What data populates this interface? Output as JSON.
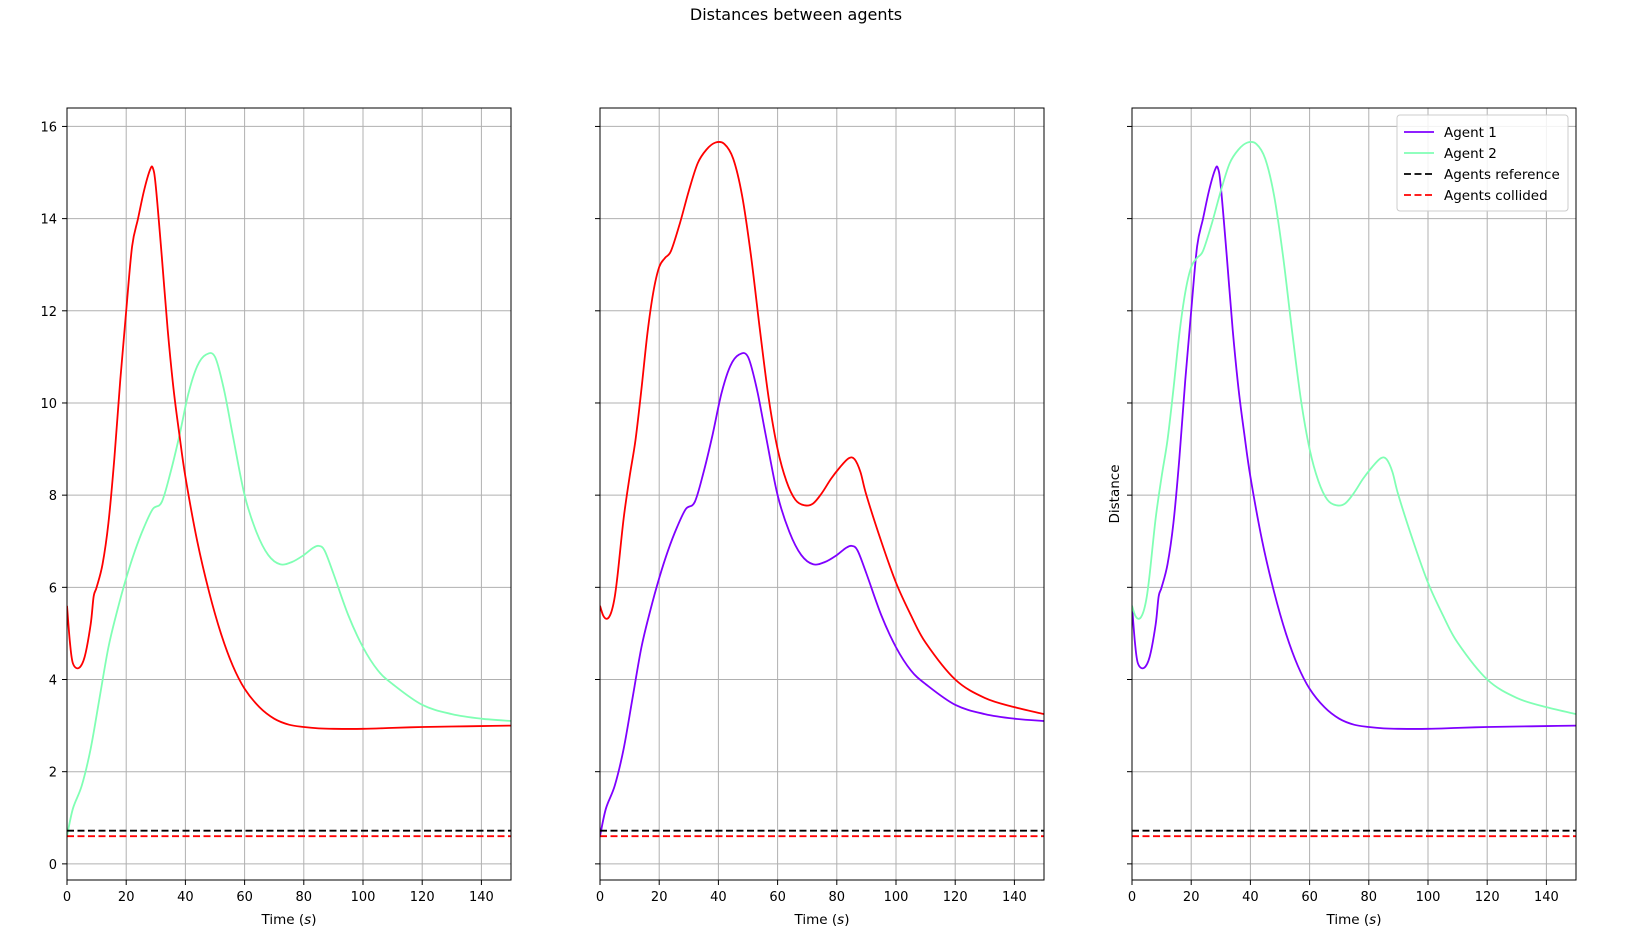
{
  "figure_title": "Distances between agents",
  "colors": {
    "agent_1": "#7f00ff",
    "agent_2": "#80ffb4",
    "red_series": "#ff0000",
    "reference": "#000000",
    "collided": "#ff0000",
    "grid": "#b0b0b0"
  },
  "chart_data": [
    {
      "type": "line",
      "xlabel": "Time (s)",
      "ylabel": "",
      "xlim": [
        0,
        150
      ],
      "ylim": [
        -0.35,
        16.4
      ],
      "xticks": [
        0,
        20,
        40,
        60,
        80,
        100,
        120,
        140
      ],
      "yticks": [
        0,
        2,
        4,
        6,
        8,
        10,
        12,
        14,
        16
      ],
      "grid": true,
      "legend": null,
      "series": [
        {
          "color": "#80ffb4",
          "style": "solid",
          "x": [
            0,
            2,
            5,
            8,
            11,
            14,
            17,
            20,
            23,
            26,
            29,
            32,
            35,
            38,
            41,
            44,
            47,
            50,
            53,
            56,
            60,
            64,
            68,
            72,
            76,
            80,
            83,
            85,
            87,
            90,
            95,
            100,
            105,
            110,
            120,
            130,
            140,
            150
          ],
          "y": [
            0.6,
            1.2,
            1.7,
            2.5,
            3.6,
            4.7,
            5.5,
            6.2,
            6.8,
            7.3,
            7.7,
            7.85,
            8.5,
            9.3,
            10.2,
            10.8,
            11.05,
            11.0,
            10.3,
            9.3,
            8.0,
            7.2,
            6.7,
            6.5,
            6.55,
            6.7,
            6.85,
            6.9,
            6.8,
            6.3,
            5.4,
            4.7,
            4.2,
            3.9,
            3.45,
            3.25,
            3.15,
            3.1
          ]
        },
        {
          "color": "#ff0000",
          "style": "solid",
          "x": [
            0,
            1,
            2,
            4,
            6,
            8,
            9,
            10,
            12,
            14,
            16,
            18,
            20,
            22,
            24,
            26,
            28,
            29,
            30,
            32,
            34,
            36,
            38,
            40,
            44,
            48,
            52,
            56,
            60,
            65,
            70,
            75,
            80,
            85,
            90,
            100,
            110,
            120,
            130,
            140,
            150
          ],
          "y": [
            5.6,
            4.8,
            4.35,
            4.25,
            4.5,
            5.2,
            5.8,
            6.0,
            6.5,
            7.4,
            8.8,
            10.5,
            12.0,
            13.4,
            14.0,
            14.6,
            15.05,
            15.1,
            14.7,
            13.2,
            11.6,
            10.3,
            9.3,
            8.4,
            7.0,
            5.9,
            5.0,
            4.3,
            3.8,
            3.4,
            3.15,
            3.02,
            2.97,
            2.94,
            2.93,
            2.93,
            2.95,
            2.97,
            2.98,
            2.99,
            3.0
          ]
        },
        {
          "color": "#000000",
          "style": "dashed",
          "x": [
            0,
            150
          ],
          "y": [
            0.72,
            0.72
          ]
        },
        {
          "color": "#ff0000",
          "style": "dashed",
          "x": [
            0,
            150
          ],
          "y": [
            0.6,
            0.6
          ]
        }
      ]
    },
    {
      "type": "line",
      "xlabel": "Time (s)",
      "ylabel": "",
      "xlim": [
        0,
        150
      ],
      "ylim": [
        -0.35,
        16.4
      ],
      "xticks": [
        0,
        20,
        40,
        60,
        80,
        100,
        120,
        140
      ],
      "yticks": [
        0,
        2,
        4,
        6,
        8,
        10,
        12,
        14,
        16
      ],
      "grid": true,
      "legend": null,
      "series": [
        {
          "color": "#7f00ff",
          "style": "solid",
          "x": [
            0,
            2,
            5,
            8,
            11,
            14,
            17,
            20,
            23,
            26,
            29,
            32,
            35,
            38,
            41,
            44,
            47,
            50,
            53,
            56,
            60,
            64,
            68,
            72,
            76,
            80,
            83,
            85,
            87,
            90,
            95,
            100,
            105,
            110,
            120,
            130,
            140,
            150
          ],
          "y": [
            0.6,
            1.2,
            1.7,
            2.5,
            3.6,
            4.7,
            5.5,
            6.2,
            6.8,
            7.3,
            7.7,
            7.85,
            8.5,
            9.3,
            10.2,
            10.8,
            11.05,
            11.0,
            10.3,
            9.3,
            8.0,
            7.2,
            6.7,
            6.5,
            6.55,
            6.7,
            6.85,
            6.9,
            6.8,
            6.3,
            5.4,
            4.7,
            4.2,
            3.9,
            3.45,
            3.25,
            3.15,
            3.1
          ]
        },
        {
          "color": "#ff0000",
          "style": "solid",
          "x": [
            0,
            1,
            2,
            3,
            4,
            5,
            6,
            8,
            10,
            12,
            14,
            16,
            18,
            20,
            22,
            24,
            27,
            30,
            33,
            36,
            39,
            42,
            45,
            48,
            51,
            54,
            57,
            60,
            63,
            66,
            69,
            72,
            75,
            78,
            81,
            84,
            86,
            88,
            90,
            95,
            100,
            105,
            110,
            120,
            130,
            140,
            150
          ],
          "y": [
            5.6,
            5.4,
            5.32,
            5.35,
            5.5,
            5.8,
            6.3,
            7.5,
            8.4,
            9.2,
            10.3,
            11.5,
            12.4,
            12.95,
            13.15,
            13.3,
            13.9,
            14.6,
            15.2,
            15.5,
            15.65,
            15.62,
            15.3,
            14.5,
            13.2,
            11.6,
            10.1,
            9.0,
            8.3,
            7.9,
            7.78,
            7.82,
            8.05,
            8.35,
            8.6,
            8.8,
            8.78,
            8.5,
            8.0,
            7.0,
            6.1,
            5.4,
            4.8,
            4.0,
            3.6,
            3.4,
            3.25
          ]
        },
        {
          "color": "#000000",
          "style": "dashed",
          "x": [
            0,
            150
          ],
          "y": [
            0.72,
            0.72
          ]
        },
        {
          "color": "#ff0000",
          "style": "dashed",
          "x": [
            0,
            150
          ],
          "y": [
            0.6,
            0.6
          ]
        }
      ]
    },
    {
      "type": "line",
      "xlabel": "Time (s)",
      "ylabel": "Distance",
      "xlim": [
        0,
        150
      ],
      "ylim": [
        -0.35,
        16.4
      ],
      "xticks": [
        0,
        20,
        40,
        60,
        80,
        100,
        120,
        140
      ],
      "yticks": [
        0,
        2,
        4,
        6,
        8,
        10,
        12,
        14,
        16
      ],
      "grid": true,
      "legend": "top-right",
      "series": [
        {
          "name": "Agent 1",
          "color": "#7f00ff",
          "style": "solid",
          "legend": true,
          "x": [
            0,
            1,
            2,
            4,
            6,
            8,
            9,
            10,
            12,
            14,
            16,
            18,
            20,
            22,
            24,
            26,
            28,
            29,
            30,
            32,
            34,
            36,
            38,
            40,
            44,
            48,
            52,
            56,
            60,
            65,
            70,
            75,
            80,
            85,
            90,
            100,
            110,
            120,
            130,
            140,
            150
          ],
          "y": [
            5.6,
            4.8,
            4.35,
            4.25,
            4.5,
            5.2,
            5.8,
            6.0,
            6.5,
            7.4,
            8.8,
            10.5,
            12.0,
            13.4,
            14.0,
            14.6,
            15.05,
            15.1,
            14.7,
            13.2,
            11.6,
            10.3,
            9.3,
            8.4,
            7.0,
            5.9,
            5.0,
            4.3,
            3.8,
            3.4,
            3.15,
            3.02,
            2.97,
            2.94,
            2.93,
            2.93,
            2.95,
            2.97,
            2.98,
            2.99,
            3.0
          ]
        },
        {
          "name": "Agent 2",
          "color": "#80ffb4",
          "style": "solid",
          "legend": true,
          "x": [
            0,
            1,
            2,
            3,
            4,
            5,
            6,
            8,
            10,
            12,
            14,
            16,
            18,
            20,
            22,
            24,
            27,
            30,
            33,
            36,
            39,
            42,
            45,
            48,
            51,
            54,
            57,
            60,
            63,
            66,
            69,
            72,
            75,
            78,
            81,
            84,
            86,
            88,
            90,
            95,
            100,
            105,
            110,
            120,
            130,
            140,
            150
          ],
          "y": [
            5.6,
            5.4,
            5.32,
            5.35,
            5.5,
            5.8,
            6.3,
            7.5,
            8.4,
            9.2,
            10.3,
            11.5,
            12.4,
            12.95,
            13.15,
            13.3,
            13.9,
            14.6,
            15.2,
            15.5,
            15.65,
            15.62,
            15.3,
            14.5,
            13.2,
            11.6,
            10.1,
            9.0,
            8.3,
            7.9,
            7.78,
            7.82,
            8.05,
            8.35,
            8.6,
            8.8,
            8.78,
            8.5,
            8.0,
            7.0,
            6.1,
            5.4,
            4.8,
            4.0,
            3.6,
            3.4,
            3.25
          ]
        },
        {
          "name": "Agents reference",
          "color": "#000000",
          "style": "dashed",
          "legend": true,
          "x": [
            0,
            150
          ],
          "y": [
            0.72,
            0.72
          ]
        },
        {
          "name": "Agents collided",
          "color": "#ff0000",
          "style": "dashed",
          "legend": true,
          "x": [
            0,
            150
          ],
          "y": [
            0.6,
            0.6
          ]
        }
      ]
    }
  ]
}
